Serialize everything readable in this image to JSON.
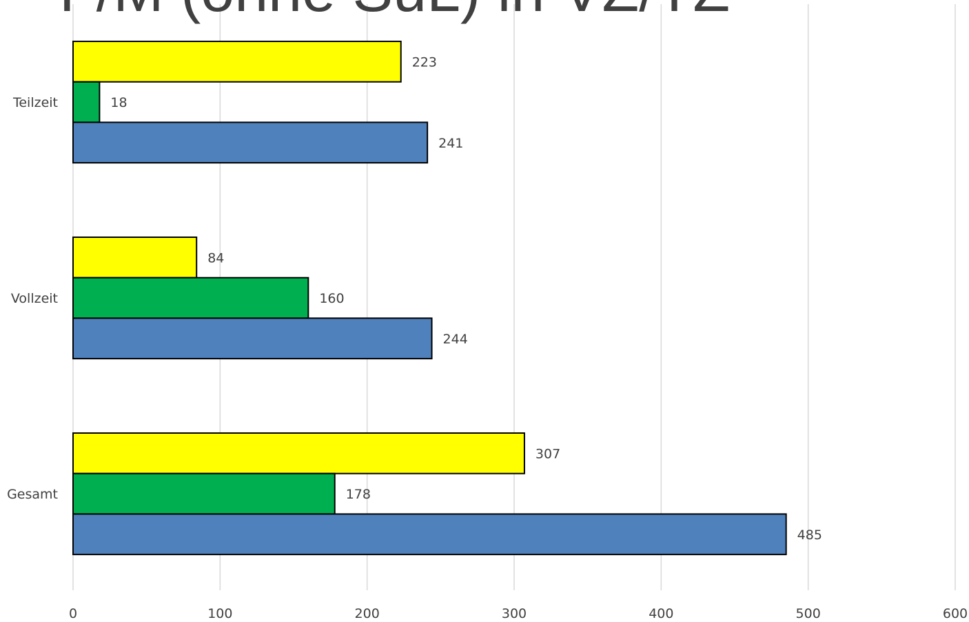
{
  "chart_data": {
    "type": "bar",
    "orientation": "horizontal",
    "title": "F/M (ohne SuL) in VZ/TZ",
    "categories": [
      "Teilzeit",
      "Vollzeit",
      "Gesamt"
    ],
    "series": [
      {
        "color": "#ffff00",
        "values": [
          223,
          84,
          307
        ]
      },
      {
        "color": "#00b050",
        "values": [
          18,
          160,
          178
        ]
      },
      {
        "color": "#4f81bd",
        "values": [
          241,
          244,
          485
        ]
      }
    ],
    "xlim": [
      0,
      600
    ],
    "xticks": [
      0,
      100,
      200,
      300,
      400,
      500,
      600
    ],
    "grid": true,
    "legend": "none",
    "data_labels": true
  }
}
